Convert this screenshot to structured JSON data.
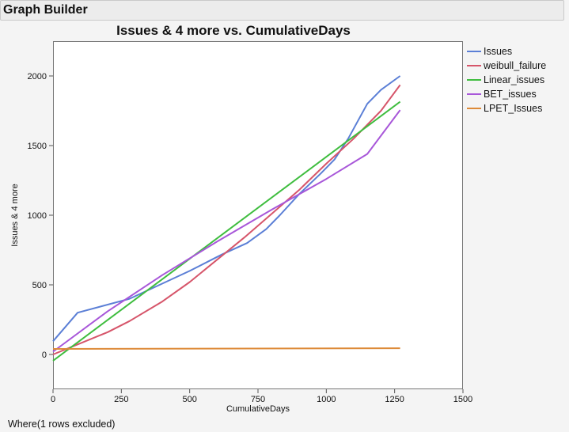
{
  "window": {
    "title": "Graph Builder"
  },
  "footer": {
    "note": "Where(1 rows excluded)"
  },
  "chart_data": {
    "type": "line",
    "title": "Issues & 4 more vs. CumulativeDays",
    "xlabel": "CumulativeDays",
    "ylabel": "Issues & 4 more",
    "xlim": [
      0,
      1500
    ],
    "ylim": [
      -250,
      2250
    ],
    "xticks": [
      0,
      250,
      500,
      750,
      1000,
      1250,
      1500
    ],
    "yticks": [
      0,
      500,
      1000,
      1500,
      2000
    ],
    "grid": false,
    "legend_position": "right",
    "series": [
      {
        "name": "Issues",
        "color": "#5b7fd6",
        "points": [
          [
            0,
            95
          ],
          [
            90,
            300
          ],
          [
            280,
            400
          ],
          [
            390,
            500
          ],
          [
            500,
            600
          ],
          [
            580,
            680
          ],
          [
            620,
            720
          ],
          [
            710,
            800
          ],
          [
            780,
            900
          ],
          [
            830,
            1000
          ],
          [
            900,
            1150
          ],
          [
            980,
            1300
          ],
          [
            1030,
            1400
          ],
          [
            1080,
            1550
          ],
          [
            1150,
            1800
          ],
          [
            1200,
            1900
          ],
          [
            1270,
            2000
          ]
        ]
      },
      {
        "name": "weibull_failure",
        "color": "#d6556a",
        "points": [
          [
            0,
            0
          ],
          [
            100,
            80
          ],
          [
            200,
            160
          ],
          [
            280,
            240
          ],
          [
            400,
            380
          ],
          [
            500,
            520
          ],
          [
            600,
            680
          ],
          [
            700,
            840
          ],
          [
            800,
            1010
          ],
          [
            900,
            1180
          ],
          [
            1000,
            1370
          ],
          [
            1100,
            1550
          ],
          [
            1200,
            1750
          ],
          [
            1270,
            1935
          ]
        ]
      },
      {
        "name": "Linear_issues",
        "color": "#3fbd3f",
        "points": [
          [
            0,
            -45
          ],
          [
            1270,
            1815
          ]
        ]
      },
      {
        "name": "BET_issues",
        "color": "#a857d9",
        "points": [
          [
            0,
            20
          ],
          [
            200,
            310
          ],
          [
            400,
            570
          ],
          [
            600,
            810
          ],
          [
            800,
            1040
          ],
          [
            1000,
            1260
          ],
          [
            1150,
            1440
          ],
          [
            1270,
            1755
          ]
        ]
      },
      {
        "name": "LPET_Issues",
        "color": "#dd8a38",
        "points": [
          [
            0,
            40
          ],
          [
            1270,
            45
          ]
        ]
      }
    ]
  }
}
